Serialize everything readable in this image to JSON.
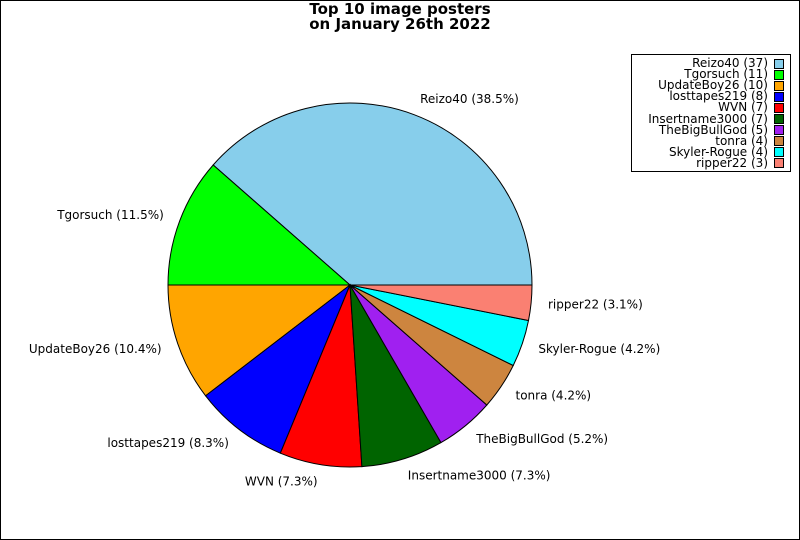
{
  "chart_data": {
    "type": "pie",
    "title_lines": [
      "Top 10 image posters",
      "on January 26th 2022"
    ],
    "legend_placement": "top-right",
    "slices": [
      {
        "name": "Reizo40",
        "value": 37,
        "legend_label": "Reizo40 (37)",
        "slice_label": "Reizo40 (38.5%)",
        "color": "#87ceeb"
      },
      {
        "name": "Tgorsuch",
        "value": 11,
        "legend_label": "Tgorsuch (11)",
        "slice_label": "Tgorsuch (11.5%)",
        "color": "#00ff00"
      },
      {
        "name": "UpdateBoy26",
        "value": 10,
        "legend_label": "UpdateBoy26 (10)",
        "slice_label": "UpdateBoy26 (10.4%)",
        "color": "#ffa500"
      },
      {
        "name": "losttapes219",
        "value": 8,
        "legend_label": "losttapes219 (8)",
        "slice_label": "losttapes219 (8.3%)",
        "color": "#0000ff"
      },
      {
        "name": "WVN",
        "value": 7,
        "legend_label": "WVN (7)",
        "slice_label": "WVN (7.3%)",
        "color": "#ff0000"
      },
      {
        "name": "Insertname3000",
        "value": 7,
        "legend_label": "Insertname3000 (7)",
        "slice_label": "Insertname3000 (7.3%)",
        "color": "#006400"
      },
      {
        "name": "TheBigBullGod",
        "value": 5,
        "legend_label": "TheBigBullGod (5)",
        "slice_label": "TheBigBullGod (5.2%)",
        "color": "#a020f0"
      },
      {
        "name": "tonra",
        "value": 4,
        "legend_label": "tonra (4)",
        "slice_label": "tonra (4.2%)",
        "color": "#cd853f"
      },
      {
        "name": "Skyler-Rogue",
        "value": 4,
        "legend_label": "Skyler-Rogue (4)",
        "slice_label": "Skyler-Rogue (4.2%)",
        "color": "#00ffff"
      },
      {
        "name": "ripper22",
        "value": 3,
        "legend_label": "ripper22 (3)",
        "slice_label": "ripper22 (3.1%)",
        "color": "#fa8072"
      }
    ]
  }
}
